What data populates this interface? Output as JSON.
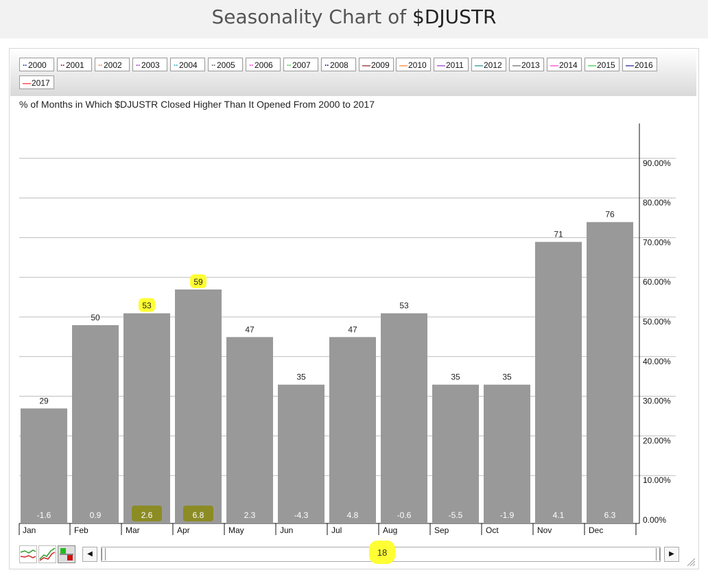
{
  "page": {
    "title_prefix": "Seasonality Chart of ",
    "title_ticker": "$DJUSTR"
  },
  "legend": [
    {
      "label": "2000",
      "color": "#1f3fbf",
      "style": "dotted"
    },
    {
      "label": "2001",
      "color": "#8b1a1a",
      "style": "dotted"
    },
    {
      "label": "2002",
      "color": "#ff7f27",
      "style": "dotted"
    },
    {
      "label": "2003",
      "color": "#9933cc",
      "style": "dotted"
    },
    {
      "label": "2004",
      "color": "#2aa7c9",
      "style": "dotted"
    },
    {
      "label": "2005",
      "color": "#666666",
      "style": "dotted"
    },
    {
      "label": "2006",
      "color": "#ff33cc",
      "style": "dotted"
    },
    {
      "label": "2007",
      "color": "#33cc33",
      "style": "dotted"
    },
    {
      "label": "2008",
      "color": "#1a1a8c",
      "style": "dotted"
    },
    {
      "label": "2009",
      "color": "#8b1a1a",
      "style": "solid"
    },
    {
      "label": "2010",
      "color": "#ff7f27",
      "style": "solid"
    },
    {
      "label": "2011",
      "color": "#9933cc",
      "style": "solid"
    },
    {
      "label": "2012",
      "color": "#1a8c8c",
      "style": "solid"
    },
    {
      "label": "2013",
      "color": "#666666",
      "style": "solid"
    },
    {
      "label": "2014",
      "color": "#ff33cc",
      "style": "solid"
    },
    {
      "label": "2015",
      "color": "#33cc33",
      "style": "solid"
    },
    {
      "label": "2016",
      "color": "#1a1a8c",
      "style": "solid"
    },
    {
      "label": "2017",
      "color": "#ff2222",
      "style": "solid"
    }
  ],
  "chart_data": {
    "type": "bar",
    "title": "% of Months in Which $DJUSTR Closed Higher Than It Opened From 2000 to 2017",
    "categories": [
      "Jan",
      "Feb",
      "Mar",
      "Apr",
      "May",
      "Jun",
      "Jul",
      "Aug",
      "Sep",
      "Oct",
      "Nov",
      "Dec"
    ],
    "values": [
      29,
      50,
      53,
      59,
      47,
      35,
      47,
      53,
      35,
      35,
      71,
      76
    ],
    "value_labels": [
      "29",
      "50",
      "53",
      "59",
      "47",
      "35",
      "47",
      "53",
      "35",
      "35",
      "71",
      "76"
    ],
    "avg_return_labels": [
      "-1.6",
      "0.9",
      "2.6",
      "6.8",
      "2.3",
      "-4.3",
      "4.8",
      "-0.6",
      "-5.5",
      "-1.9",
      "4.1",
      "6.3"
    ],
    "y_ticks": [
      "0.00%",
      "10.00%",
      "20.00%",
      "30.00%",
      "40.00%",
      "50.00%",
      "60.00%",
      "70.00%",
      "80.00%",
      "90.00%"
    ],
    "ylim": [
      0,
      100
    ],
    "y_axis_position": "right",
    "grid": true,
    "bar_color": "#999999",
    "highlight_color": "#ffff33",
    "highlighted_value_labels": [
      "Mar",
      "Apr"
    ],
    "highlighted_return_labels": [
      "Mar",
      "Apr"
    ]
  },
  "range_selector": {
    "label": "18"
  }
}
